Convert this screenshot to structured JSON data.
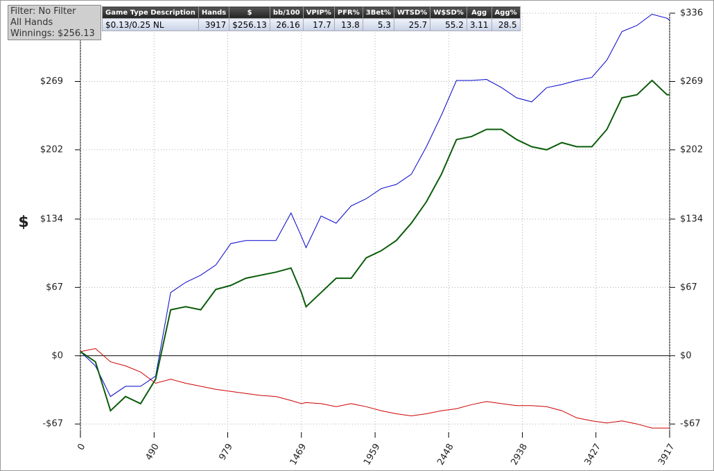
{
  "filter_box": {
    "lines": [
      "Filter: No Filter",
      "All Hands",
      "Winnings: $256.13"
    ]
  },
  "stats_table": {
    "headers": [
      "Game Type Description",
      "Hands",
      "$",
      "bb/100",
      "VPIP%",
      "PFR%",
      "3Bet%",
      "WTSD%",
      "W$SD%",
      "Agg",
      "Agg%"
    ],
    "rows": [
      [
        "$0.13/0.25 NL",
        "3917",
        "$256.13",
        "26.16",
        "17.7",
        "13.8",
        "5.3",
        "25.7",
        "55.2",
        "3.11",
        "28.5"
      ]
    ]
  },
  "chart_data": {
    "type": "line",
    "y_label": "$",
    "x": [
      0,
      100,
      200,
      300,
      400,
      500,
      600,
      700,
      800,
      900,
      1000,
      1100,
      1200,
      1300,
      1400,
      1469,
      1500,
      1600,
      1700,
      1800,
      1900,
      2000,
      2100,
      2200,
      2300,
      2400,
      2500,
      2600,
      2700,
      2800,
      2900,
      3000,
      3100,
      3200,
      3300,
      3400,
      3500,
      3600,
      3700,
      3800,
      3900,
      3917
    ],
    "xlim": [
      0,
      3917
    ],
    "xticks": [
      0,
      490,
      979,
      1469,
      1959,
      2448,
      2938,
      3427,
      3917
    ],
    "ylim": [
      -75,
      336
    ],
    "yticks": [
      {
        "value": -67,
        "label": "-$67"
      },
      {
        "value": 0,
        "label": "$0"
      },
      {
        "value": 67,
        "label": "$67"
      },
      {
        "value": 134,
        "label": "$134"
      },
      {
        "value": 202,
        "label": "$202"
      },
      {
        "value": 269,
        "label": "$269"
      },
      {
        "value": 336,
        "label": "$336"
      }
    ],
    "grid": true,
    "series": [
      {
        "color": "#cc0000",
        "width": 1,
        "values": [
          4,
          7,
          -6,
          -10,
          -16,
          -27,
          -23,
          -27,
          -30,
          -33,
          -35,
          -37,
          -39,
          -40,
          -44,
          -47,
          -46,
          -47,
          -50,
          -47,
          -50,
          -54,
          -57,
          -59,
          -57,
          -54,
          -52,
          -48,
          -45,
          -47,
          -49,
          -49,
          -50,
          -54,
          -61,
          -64,
          -66,
          -64,
          -67,
          -71,
          -71,
          -71
        ]
      },
      {
        "color": "#0000cc",
        "width": 1,
        "values": [
          4,
          -10,
          -40,
          -30,
          -30,
          -20,
          62,
          72,
          79,
          89,
          110,
          113,
          113,
          113,
          140,
          117,
          106,
          137,
          130,
          147,
          154,
          164,
          168,
          178,
          205,
          236,
          270,
          270,
          271,
          263,
          253,
          249,
          263,
          266,
          270,
          273,
          290,
          318,
          324,
          335,
          331,
          329
        ]
      },
      {
        "color": "#0a5c0a",
        "width": 2,
        "values": [
          4,
          -6,
          -54,
          -40,
          -47,
          -23,
          45,
          48,
          45,
          65,
          69,
          76,
          79,
          82,
          86,
          62,
          48,
          62,
          76,
          76,
          96,
          103,
          113,
          130,
          151,
          178,
          212,
          215,
          222,
          222,
          212,
          205,
          202,
          209,
          205,
          205,
          222,
          253,
          256,
          270,
          256,
          256.13
        ]
      }
    ]
  }
}
